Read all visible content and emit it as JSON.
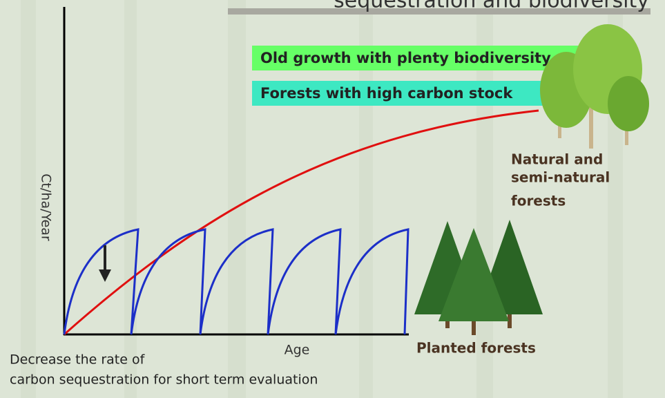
{
  "title": "sequestration and biodiversity",
  "labels": {
    "old_growth": "Old growth with plenty biodiversity",
    "high_carbon": "Forests with high carbon stock",
    "natural": [
      "Natural and",
      "semi-natural",
      "forests"
    ],
    "y_axis": "Ct/ha/Year",
    "x_axis": "Age",
    "planted": "Planted forests",
    "decrease": [
      "Decrease the rate of",
      "carbon sequestration for short term evaluation"
    ]
  }
}
